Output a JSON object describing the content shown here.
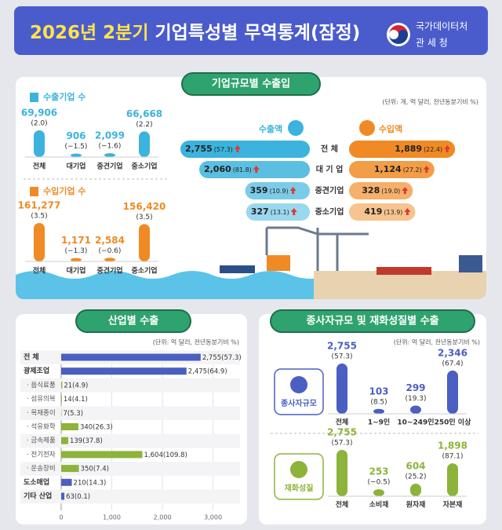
{
  "header": {
    "title_year": "2026년 2분기",
    "title_main": "기업특성별 무역통계(잠정)",
    "org1": "국가데이터처",
    "org2": "관 세 청"
  },
  "sections": [
    {
      "title": "기업규모별 수출입",
      "unit": "(단위: 개, 억 달러, 전년동분기비 %)"
    },
    {
      "title": "산업별 수출",
      "unit": "(단위: 억 달러, 전년동분기비 %)"
    },
    {
      "title": "종사자규모 및 재화성질별 수출",
      "unit": "(단위: 억 달러, 전년동분기비 %)"
    }
  ],
  "chart_data": [
    {
      "type": "column",
      "title": "수출기업 수",
      "color": "#3bb3dd",
      "categories": [
        "전체",
        "대기업",
        "중견기업",
        "중소기업"
      ],
      "values": [
        69906,
        906,
        2099,
        66668
      ],
      "value_labels": [
        "69,906",
        "906",
        "2,099",
        "66,668"
      ],
      "changes": [
        2.0,
        -1.5,
        -1.6,
        2.2
      ],
      "change_labels": [
        "(2.0)",
        "(−1.5)",
        "(−1.6)",
        "(2.2)"
      ]
    },
    {
      "type": "column",
      "title": "수입기업 수",
      "color": "#f08a24",
      "categories": [
        "전체",
        "대기업",
        "중견기업",
        "중소기업"
      ],
      "values": [
        161277,
        1171,
        2584,
        156420
      ],
      "value_labels": [
        "161,277",
        "1,171",
        "2,584",
        "156,420"
      ],
      "changes": [
        3.5,
        -1.3,
        -0.6,
        3.5
      ],
      "change_labels": [
        "(3.5)",
        "(−1.3)",
        "(−0.6)",
        "(3.5)"
      ]
    },
    {
      "type": "butterfly",
      "categories": [
        "전 체",
        "대 기 업",
        "중견기업",
        "중소기업"
      ],
      "series": [
        {
          "name": "수출액",
          "color": "#3bb3dd",
          "values": [
            2755,
            2060,
            359,
            327
          ],
          "value_labels": [
            "2,755",
            "2,060",
            "359",
            "327"
          ],
          "changes": [
            57.3,
            81.8,
            10.9,
            13.1
          ],
          "change_labels": [
            "(57.3)",
            "(81.8)",
            "(10.9)",
            "(13.1)"
          ]
        },
        {
          "name": "수입액",
          "color": "#f08a24",
          "values": [
            1889,
            1124,
            328,
            419
          ],
          "value_labels": [
            "1,889",
            "1,124",
            "328",
            "419"
          ],
          "changes": [
            22.4,
            27.2,
            19.0,
            13.9
          ],
          "change_labels": [
            "(22.4)",
            "(27.2)",
            "(19.0)",
            "(13.9)"
          ]
        }
      ]
    },
    {
      "type": "hbar",
      "categories": [
        "전 체",
        "광제조업",
        "· 음식료품",
        "· 섬유의복",
        "· 목재종이",
        "· 석유화학",
        "· 금속제품",
        "· 전기전자",
        "· 운송장비",
        "도소매업",
        "기타 산업"
      ],
      "values": [
        2755,
        2475,
        21,
        14,
        7,
        340,
        139,
        1604,
        350,
        210,
        63
      ],
      "value_labels": [
        "2,755",
        "2,475",
        "21",
        "14",
        "7",
        "340",
        "139",
        "1,604",
        "350",
        "210",
        "63"
      ],
      "changes": [
        57.3,
        64.9,
        4.9,
        4.1,
        5.3,
        26.3,
        37.8,
        109.8,
        7.4,
        14.3,
        0.1
      ],
      "change_labels": [
        "(57.3)",
        "(64.9)",
        "(4.9)",
        "(4.1)",
        "(5.3)",
        "(26.3)",
        "(37.8)",
        "(109.8)",
        "(7.4)",
        "(14.3)",
        "(0.1)"
      ],
      "colors": [
        "#4a5fc1",
        "#4a5fc1",
        "#8db33a",
        "#8db33a",
        "#8db33a",
        "#8db33a",
        "#8db33a",
        "#8db33a",
        "#8db33a",
        "#4a5fc1",
        "#4a5fc1"
      ],
      "xlim": [
        0,
        3300
      ],
      "xticks": [
        0,
        {
          "value": 1000,
          "label": "1,000"
        },
        {
          "value": 2000,
          "label": "2,000"
        },
        {
          "value": 3000,
          "label": "3,000"
        }
      ],
      "grid": true
    },
    {
      "type": "column",
      "title": "종사자규모",
      "color": "#4a5fc1",
      "categories": [
        "전체",
        "1~9인",
        "10~249인",
        "250인 이상"
      ],
      "values": [
        2755,
        103,
        299,
        2346
      ],
      "value_labels": [
        "2,755",
        "103",
        "299",
        "2,346"
      ],
      "changes": [
        57.3,
        8.5,
        19.3,
        67.4
      ],
      "change_labels": [
        "(57.3)",
        "(8.5)",
        "(19.3)",
        "(67.4)"
      ]
    },
    {
      "type": "column",
      "title": "재화성질",
      "color": "#8db33a",
      "categories": [
        "전체",
        "소비재",
        "원자재",
        "자본재"
      ],
      "values": [
        2755,
        253,
        604,
        1898
      ],
      "value_labels": [
        "2,755",
        "253",
        "604",
        "1,898"
      ],
      "changes": [
        57.3,
        -0.5,
        25.2,
        87.1
      ],
      "change_labels": [
        "(57.3)",
        "(−0.5)",
        "(25.2)",
        "(87.1)"
      ]
    }
  ]
}
